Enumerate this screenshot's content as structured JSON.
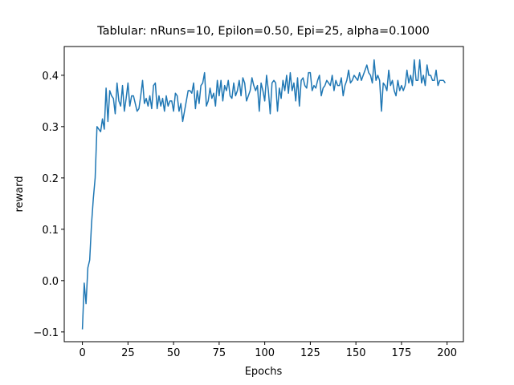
{
  "chart_data": {
    "type": "line",
    "title": "Tablular: nRuns=10, Epilon=0.50, Epi=25, alpha=0.1000",
    "x_label": "Epochs",
    "y_label": "reward",
    "x": [
      0,
      1,
      2,
      3,
      4,
      5,
      6,
      7,
      8,
      9,
      10,
      11,
      12,
      13,
      14,
      15,
      16,
      17,
      18,
      19,
      20,
      21,
      22,
      23,
      24,
      25,
      26,
      27,
      28,
      29,
      30,
      31,
      32,
      33,
      34,
      35,
      36,
      37,
      38,
      39,
      40,
      41,
      42,
      43,
      44,
      45,
      46,
      47,
      48,
      49,
      50,
      51,
      52,
      53,
      54,
      55,
      56,
      57,
      58,
      59,
      60,
      61,
      62,
      63,
      64,
      65,
      66,
      67,
      68,
      69,
      70,
      71,
      72,
      73,
      74,
      75,
      76,
      77,
      78,
      79,
      80,
      81,
      82,
      83,
      84,
      85,
      86,
      87,
      88,
      89,
      90,
      91,
      92,
      93,
      94,
      95,
      96,
      97,
      98,
      99,
      100,
      101,
      102,
      103,
      104,
      105,
      106,
      107,
      108,
      109,
      110,
      111,
      112,
      113,
      114,
      115,
      116,
      117,
      118,
      119,
      120,
      121,
      122,
      123,
      124,
      125,
      126,
      127,
      128,
      129,
      130,
      131,
      132,
      133,
      134,
      135,
      136,
      137,
      138,
      139,
      140,
      141,
      142,
      143,
      144,
      145,
      146,
      147,
      148,
      149,
      150,
      151,
      152,
      153,
      154,
      155,
      156,
      157,
      158,
      159,
      160,
      161,
      162,
      163,
      164,
      165,
      166,
      167,
      168,
      169,
      170,
      171,
      172,
      173,
      174,
      175,
      176,
      177,
      178,
      179,
      180,
      181,
      182,
      183,
      184,
      185,
      186,
      187,
      188,
      189,
      190,
      191,
      192,
      193,
      194,
      195,
      196,
      197,
      198,
      199
    ],
    "series": [
      {
        "name": "reward",
        "color": "#1f77b4",
        "values": [
          -0.095,
          -0.005,
          -0.045,
          0.025,
          0.04,
          0.11,
          0.16,
          0.2,
          0.3,
          0.295,
          0.29,
          0.315,
          0.295,
          0.375,
          0.31,
          0.37,
          0.36,
          0.355,
          0.325,
          0.385,
          0.35,
          0.34,
          0.38,
          0.33,
          0.355,
          0.385,
          0.34,
          0.36,
          0.36,
          0.345,
          0.33,
          0.335,
          0.36,
          0.39,
          0.345,
          0.355,
          0.34,
          0.36,
          0.335,
          0.38,
          0.385,
          0.335,
          0.36,
          0.34,
          0.355,
          0.33,
          0.36,
          0.34,
          0.35,
          0.35,
          0.33,
          0.365,
          0.36,
          0.33,
          0.345,
          0.31,
          0.33,
          0.35,
          0.37,
          0.37,
          0.365,
          0.385,
          0.335,
          0.37,
          0.345,
          0.38,
          0.385,
          0.405,
          0.34,
          0.35,
          0.375,
          0.355,
          0.365,
          0.34,
          0.39,
          0.36,
          0.39,
          0.35,
          0.38,
          0.37,
          0.39,
          0.36,
          0.355,
          0.385,
          0.36,
          0.37,
          0.39,
          0.36,
          0.395,
          0.385,
          0.35,
          0.36,
          0.37,
          0.395,
          0.38,
          0.37,
          0.38,
          0.33,
          0.385,
          0.37,
          0.35,
          0.4,
          0.37,
          0.325,
          0.385,
          0.39,
          0.385,
          0.33,
          0.375,
          0.355,
          0.39,
          0.37,
          0.4,
          0.365,
          0.405,
          0.37,
          0.385,
          0.35,
          0.395,
          0.34,
          0.39,
          0.395,
          0.38,
          0.375,
          0.405,
          0.405,
          0.37,
          0.38,
          0.375,
          0.39,
          0.4,
          0.36,
          0.375,
          0.38,
          0.39,
          0.385,
          0.38,
          0.4,
          0.37,
          0.39,
          0.38,
          0.38,
          0.395,
          0.36,
          0.38,
          0.39,
          0.41,
          0.385,
          0.39,
          0.4,
          0.395,
          0.39,
          0.405,
          0.39,
          0.4,
          0.41,
          0.42,
          0.405,
          0.4,
          0.385,
          0.43,
          0.39,
          0.4,
          0.39,
          0.33,
          0.385,
          0.38,
          0.37,
          0.41,
          0.38,
          0.39,
          0.37,
          0.36,
          0.39,
          0.37,
          0.38,
          0.37,
          0.38,
          0.41,
          0.385,
          0.4,
          0.38,
          0.43,
          0.39,
          0.39,
          0.43,
          0.385,
          0.4,
          0.38,
          0.42,
          0.4,
          0.4,
          0.39,
          0.39,
          0.41,
          0.38,
          0.39,
          0.39,
          0.39,
          0.385
        ]
      }
    ],
    "xlim": [
      -9.95,
      208.95
    ],
    "ylim": [
      -0.119,
      0.456
    ],
    "xticks": [
      0,
      25,
      50,
      75,
      100,
      125,
      150,
      175,
      200
    ],
    "yticks": [
      {
        "value": -0.1,
        "label": "−0.1"
      },
      {
        "value": 0,
        "label": "0.0"
      },
      0.1,
      0.2,
      0.3,
      0.4
    ],
    "grid": false
  }
}
